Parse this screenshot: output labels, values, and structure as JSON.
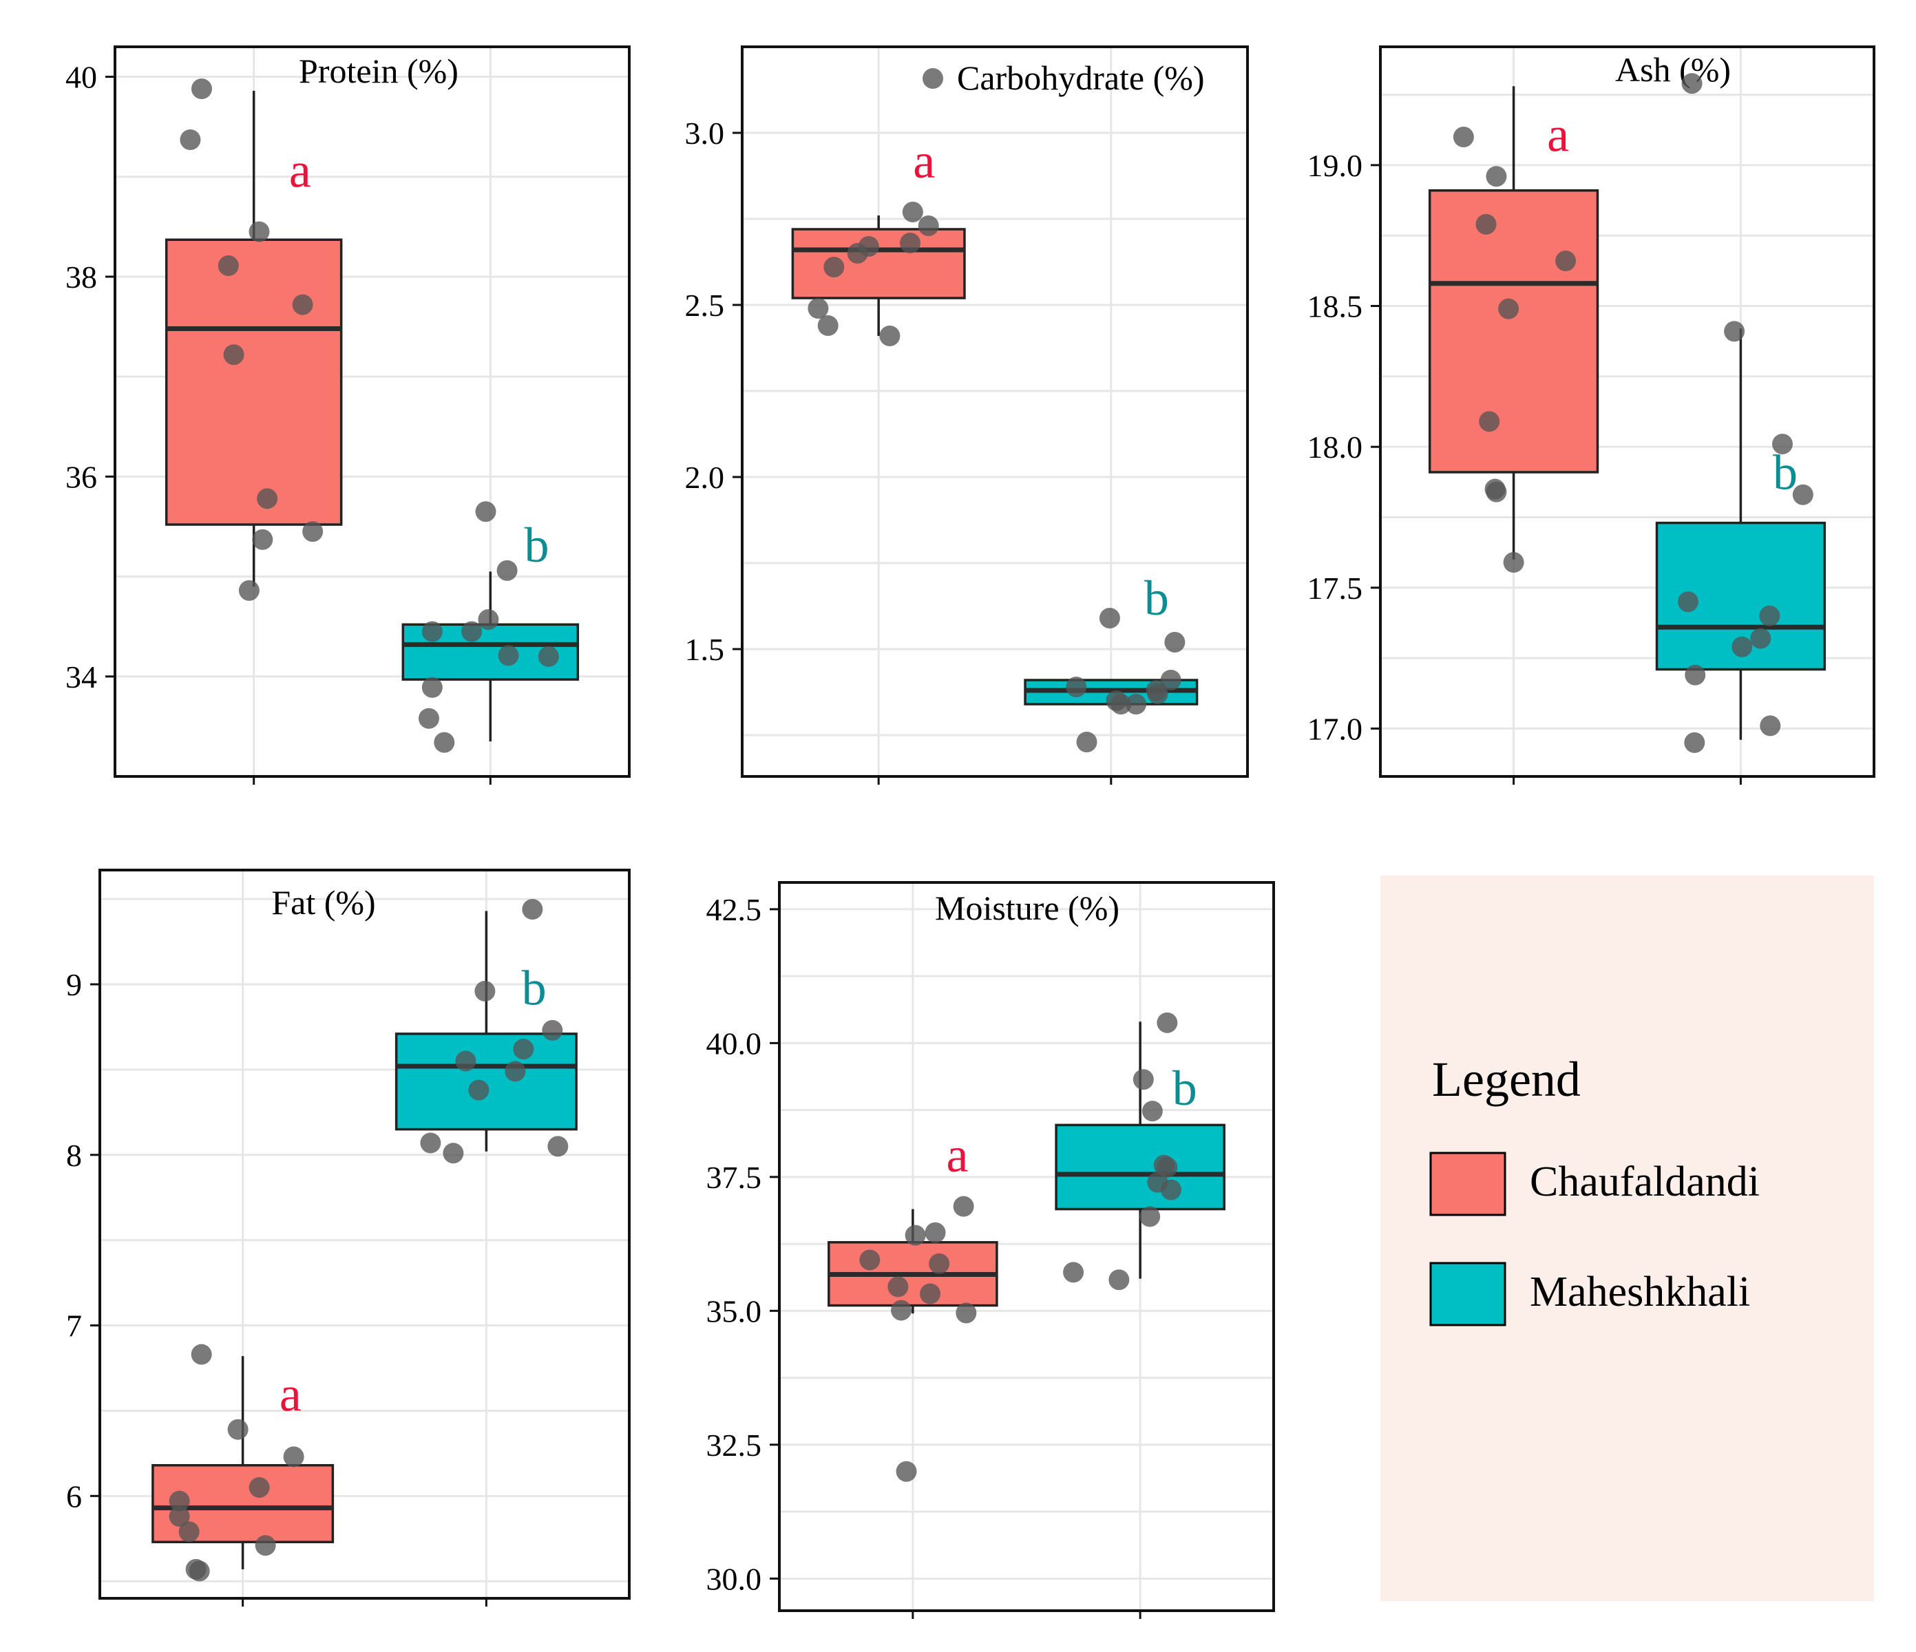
{
  "colors": {
    "chaufaldandi": "#F8766D",
    "maheshkhali": "#00BFC4",
    "letter_a": "#E8143C",
    "letter_b": "#0E8C94",
    "point": "#555555",
    "legend_bg": "#FCEEE9",
    "grid": "#E6E6E6"
  },
  "legend": {
    "title": "Legend",
    "items": [
      {
        "label": "Chaufaldandi",
        "color": "#F8766D"
      },
      {
        "label": "Maheshkhali",
        "color": "#00BFC4"
      }
    ]
  },
  "chart_data": [
    {
      "type": "box",
      "title": "Protein (%)",
      "ylim": [
        33.0,
        40.3
      ],
      "yticks": [
        34,
        36,
        38,
        40
      ],
      "ytick_labels": [
        "34",
        "36",
        "38",
        "40"
      ],
      "groups": [
        {
          "name": "Chaufaldandi",
          "letter": "a",
          "letter_y": 38.9,
          "box": {
            "whisker_low": 34.9,
            "q1": 35.52,
            "median": 37.48,
            "q3": 38.37,
            "whisker_high": 39.86
          },
          "points": [
            [
              -0.78,
              39.88
            ],
            [
              -0.95,
              39.37
            ],
            [
              0.08,
              38.45
            ],
            [
              -0.38,
              38.11
            ],
            [
              0.73,
              37.72
            ],
            [
              -0.3,
              37.22
            ],
            [
              0.2,
              35.78
            ],
            [
              0.13,
              35.37
            ],
            [
              0.88,
              35.45
            ],
            [
              -0.07,
              34.86
            ]
          ]
        },
        {
          "name": "Maheshkhali",
          "letter": "b",
          "letter_y": 35.15,
          "box": {
            "whisker_low": 33.35,
            "q1": 33.97,
            "median": 34.32,
            "q3": 34.52,
            "whisker_high": 35.05
          },
          "points": [
            [
              -0.07,
              35.65
            ],
            [
              0.25,
              35.06
            ],
            [
              -0.03,
              34.57
            ],
            [
              -0.87,
              34.45
            ],
            [
              -0.28,
              34.45
            ],
            [
              0.27,
              34.21
            ],
            [
              0.87,
              34.2
            ],
            [
              -0.87,
              33.89
            ],
            [
              -0.92,
              33.58
            ],
            [
              -0.69,
              33.34
            ]
          ]
        }
      ]
    },
    {
      "type": "box",
      "title": "Carbohydrate (%)",
      "ylim": [
        1.13,
        3.25
      ],
      "yticks": [
        1.5,
        2.0,
        2.5,
        3.0
      ],
      "ytick_labels": [
        "1.5",
        "2.0",
        "2.5",
        "3.0"
      ],
      "groups": [
        {
          "name": "Chaufaldandi",
          "letter": "a",
          "letter_y": 2.87,
          "box": {
            "whisker_low": 2.41,
            "q1": 2.52,
            "median": 2.66,
            "q3": 2.72,
            "whisker_high": 2.76
          },
          "points": [
            [
              0.52,
              2.77
            ],
            [
              0.76,
              2.73
            ],
            [
              0.48,
              2.68
            ],
            [
              -0.15,
              2.67
            ],
            [
              -0.32,
              2.65
            ],
            [
              -0.68,
              2.61
            ],
            [
              -0.92,
              2.49
            ],
            [
              -0.77,
              2.44
            ],
            [
              0.17,
              2.41
            ]
          ]
        },
        {
          "name": "Maheshkhali",
          "letter": "b",
          "letter_y": 1.6,
          "box": {
            "whisker_low": 1.34,
            "q1": 1.34,
            "median": 1.38,
            "q3": 1.41,
            "whisker_high": 1.41
          },
          "points": [
            [
              -0.02,
              1.59
            ],
            [
              0.97,
              1.52
            ],
            [
              0.91,
              1.41
            ],
            [
              -0.53,
              1.39
            ],
            [
              0.69,
              1.38
            ],
            [
              0.71,
              1.37
            ],
            [
              0.08,
              1.35
            ],
            [
              0.15,
              1.34
            ],
            [
              0.38,
              1.34
            ],
            [
              -0.37,
              1.23
            ]
          ]
        }
      ]
    },
    {
      "type": "box",
      "title": "Ash (%)",
      "ylim": [
        16.83,
        19.42
      ],
      "yticks": [
        17.0,
        17.5,
        18.0,
        18.5,
        19.0
      ],
      "ytick_labels": [
        "17.0",
        "17.5",
        "18.0",
        "18.5",
        "19.0"
      ],
      "groups": [
        {
          "name": "Chaufaldandi",
          "letter": "a",
          "letter_y": 19.05,
          "box": {
            "whisker_low": 17.6,
            "q1": 17.91,
            "median": 18.58,
            "q3": 18.91,
            "whisker_high": 19.28
          },
          "points": [
            [
              -0.78,
              19.1
            ],
            [
              -0.27,
              18.96
            ],
            [
              -0.43,
              18.79
            ],
            [
              0.81,
              18.66
            ],
            [
              -0.08,
              18.49
            ],
            [
              -0.38,
              18.09
            ],
            [
              -0.29,
              17.85
            ],
            [
              -0.27,
              17.84
            ],
            [
              0.0,
              17.59
            ]
          ]
        },
        {
          "name": "Maheshkhali",
          "letter": "b",
          "letter_y": 17.85,
          "box": {
            "whisker_low": 16.96,
            "q1": 17.21,
            "median": 17.36,
            "q3": 17.73,
            "whisker_high": 18.42
          },
          "points": [
            [
              -0.76,
              19.29
            ],
            [
              -0.1,
              18.41
            ],
            [
              0.65,
              18.01
            ],
            [
              0.97,
              17.83
            ],
            [
              -0.82,
              17.45
            ],
            [
              0.45,
              17.4
            ],
            [
              0.31,
              17.32
            ],
            [
              0.02,
              17.29
            ],
            [
              -0.71,
              17.19
            ],
            [
              -0.72,
              16.95
            ],
            [
              0.46,
              17.01
            ]
          ]
        }
      ]
    },
    {
      "type": "box",
      "title": "Fat (%)",
      "ylim": [
        5.4,
        9.67
      ],
      "yticks": [
        6,
        7,
        8,
        9
      ],
      "ytick_labels": [
        "6",
        "7",
        "8",
        "9"
      ],
      "groups": [
        {
          "name": "Chaufaldandi",
          "letter": "a",
          "letter_y": 6.5,
          "box": {
            "whisker_low": 5.57,
            "q1": 5.73,
            "median": 5.93,
            "q3": 6.18,
            "whisker_high": 6.82
          },
          "points": [
            [
              -0.6,
              6.83
            ],
            [
              -0.07,
              6.39
            ],
            [
              0.74,
              6.23
            ],
            [
              0.24,
              6.05
            ],
            [
              -0.92,
              5.97
            ],
            [
              -0.92,
              5.88
            ],
            [
              -0.78,
              5.79
            ],
            [
              0.33,
              5.71
            ],
            [
              -0.68,
              5.57
            ],
            [
              -0.63,
              5.56
            ]
          ]
        },
        {
          "name": "Maheshkhali",
          "letter": "b",
          "letter_y": 8.88,
          "box": {
            "whisker_low": 8.02,
            "q1": 8.15,
            "median": 8.52,
            "q3": 8.71,
            "whisker_high": 9.43
          },
          "points": [
            [
              0.67,
              9.44
            ],
            [
              -0.02,
              8.96
            ],
            [
              0.96,
              8.73
            ],
            [
              0.54,
              8.62
            ],
            [
              -0.3,
              8.55
            ],
            [
              0.42,
              8.49
            ],
            [
              -0.11,
              8.38
            ],
            [
              -0.81,
              8.07
            ],
            [
              -0.48,
              8.01
            ],
            [
              1.04,
              8.05
            ]
          ]
        }
      ]
    },
    {
      "type": "box",
      "title": "Moisture (%)",
      "ylim": [
        29.4,
        43.0
      ],
      "yticks": [
        30.0,
        32.5,
        35.0,
        37.5,
        40.0,
        42.5
      ],
      "ytick_labels": [
        "30.0",
        "32.5",
        "35.0",
        "37.5",
        "40.0",
        "42.5"
      ],
      "groups": [
        {
          "name": "Chaufaldandi",
          "letter": "a",
          "letter_y": 37.6,
          "box": {
            "whisker_low": 34.95,
            "q1": 35.1,
            "median": 35.68,
            "q3": 36.28,
            "whisker_high": 36.9
          },
          "points": [
            [
              0.79,
              36.95
            ],
            [
              0.35,
              36.46
            ],
            [
              0.04,
              36.41
            ],
            [
              -0.67,
              35.95
            ],
            [
              0.41,
              35.88
            ],
            [
              -0.23,
              35.45
            ],
            [
              0.27,
              35.32
            ],
            [
              -0.18,
              35.01
            ],
            [
              0.83,
              34.96
            ],
            [
              -0.1,
              32.0
            ]
          ]
        },
        {
          "name": "Maheshkhali",
          "letter": "b",
          "letter_y": 38.85,
          "box": {
            "whisker_low": 35.6,
            "q1": 36.9,
            "median": 37.55,
            "q3": 38.47,
            "whisker_high": 40.4
          },
          "points": [
            [
              0.42,
              40.38
            ],
            [
              0.05,
              39.32
            ],
            [
              0.19,
              38.73
            ],
            [
              0.37,
              37.72
            ],
            [
              0.42,
              37.68
            ],
            [
              0.27,
              37.4
            ],
            [
              0.48,
              37.26
            ],
            [
              0.15,
              36.76
            ],
            [
              -1.04,
              35.72
            ],
            [
              -0.33,
              35.58
            ]
          ]
        }
      ]
    }
  ]
}
